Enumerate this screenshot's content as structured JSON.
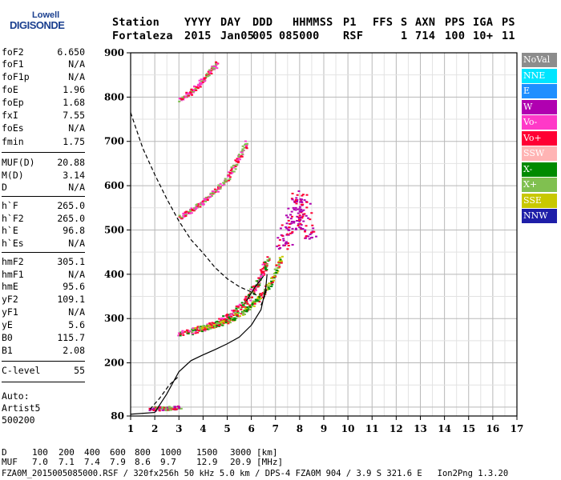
{
  "logo": {
    "line1": "Lowell",
    "line2": "DIGISONDE"
  },
  "header": {
    "row1": [
      "Station",
      "YYYY",
      "DAY",
      "DDD",
      "HHMMSS",
      "P1",
      "FFS",
      "S",
      "AXN",
      "PPS",
      "IGA",
      "PS"
    ],
    "row2": [
      "Fortaleza",
      "2015",
      "Jan05",
      "005",
      "085000",
      "RSF",
      "1",
      "714",
      "100",
      "10+",
      "11"
    ]
  },
  "params": [
    {
      "k": "foF2",
      "v": "6.650"
    },
    {
      "k": "foF1",
      "v": "N/A"
    },
    {
      "k": "foF1p",
      "v": "N/A"
    },
    {
      "k": "foE",
      "v": "1.96"
    },
    {
      "k": "foEp",
      "v": "1.68"
    },
    {
      "k": "fxI",
      "v": "7.55"
    },
    {
      "k": "foEs",
      "v": "N/A"
    },
    {
      "k": "fmin",
      "v": "1.75"
    },
    {
      "k": "MUF(D)",
      "v": "20.88"
    },
    {
      "k": "M(D)",
      "v": "3.14"
    },
    {
      "k": "D",
      "v": "N/A"
    },
    {
      "k": "h`F",
      "v": "265.0"
    },
    {
      "k": "h`F2",
      "v": "265.0"
    },
    {
      "k": "h`E",
      "v": "96.8"
    },
    {
      "k": "h`Es",
      "v": "N/A"
    },
    {
      "k": "hmF2",
      "v": "305.1"
    },
    {
      "k": "hmF1",
      "v": "N/A"
    },
    {
      "k": "hmE",
      "v": "95.6"
    },
    {
      "k": "yF2",
      "v": "109.1"
    },
    {
      "k": "yF1",
      "v": "N/A"
    },
    {
      "k": "yE",
      "v": "5.6"
    },
    {
      "k": "B0",
      "v": "115.7"
    },
    {
      "k": "B1",
      "v": "2.08"
    },
    {
      "k": "C-level",
      "v": "55"
    }
  ],
  "auto": {
    "line1": "Auto:",
    "line2": "Artist5",
    "line3": "500200"
  },
  "legend": [
    {
      "label": "NoVal",
      "color": "#8c8c8c"
    },
    {
      "label": "NNE",
      "color": "#00e5ff"
    },
    {
      "label": "E",
      "color": "#1f8fff"
    },
    {
      "label": "W",
      "color": "#b000b0"
    },
    {
      "label": "Vo-",
      "color": "#ff39c8"
    },
    {
      "label": "Vo+",
      "color": "#ff0033"
    },
    {
      "label": "SSW",
      "color": "#ffb4b4"
    },
    {
      "label": "X-",
      "color": "#008a00"
    },
    {
      "label": "X+",
      "color": "#80c050"
    },
    {
      "label": "SSE",
      "color": "#c8c800"
    },
    {
      "label": "NNW",
      "color": "#1e1ea8"
    }
  ],
  "footer": {
    "d_label": "D",
    "d_values": [
      "100",
      "200",
      "400",
      "600",
      "800",
      "1000",
      "1500",
      "3000",
      "[km]"
    ],
    "muf_label": "MUF",
    "muf_values": [
      "7.0",
      "7.1",
      "7.4",
      "7.9",
      "8.6",
      "9.7",
      "12.9",
      "20.9",
      "[MHz]"
    ],
    "info": "FZA0M_2015005085000.RSF / 320fx256h 50 kHz 5.0 km / DPS-4 FZA0M 904 / 3.9 S 321.6 E   Ion2Png 1.3.20"
  },
  "chart_data": {
    "type": "scatter",
    "xlim": [
      1,
      17
    ],
    "ylim": [
      80,
      900
    ],
    "x_ticks": [
      1,
      2,
      3,
      4,
      5,
      6,
      7,
      8,
      9,
      10,
      11,
      12,
      13,
      14,
      15,
      16,
      17
    ],
    "y_ticks": [
      80,
      200,
      300,
      400,
      500,
      600,
      700,
      800,
      900
    ],
    "grid": true,
    "traces": [
      {
        "name": "o_F2",
        "x": [
          3.0,
          3.5,
          4.0,
          4.5,
          5.0,
          5.4,
          5.8,
          6.1,
          6.4,
          6.65
        ],
        "y": [
          268,
          272,
          280,
          290,
          305,
          322,
          345,
          370,
          400,
          440
        ]
      },
      {
        "name": "x_F2",
        "x": [
          3.7,
          4.2,
          4.7,
          5.2,
          5.7,
          6.1,
          6.5,
          6.9,
          7.2
        ],
        "y": [
          278,
          282,
          290,
          300,
          318,
          338,
          360,
          395,
          440
        ]
      },
      {
        "name": "o_F2_2hop",
        "x": [
          3.0,
          3.5,
          4.0,
          4.5,
          5.0,
          5.4,
          5.8
        ],
        "y": [
          530,
          545,
          565,
          590,
          620,
          660,
          700
        ]
      },
      {
        "name": "o_F2_3hop",
        "x": [
          3.0,
          3.4,
          3.8,
          4.2,
          4.6
        ],
        "y": [
          795,
          810,
          830,
          855,
          880
        ]
      },
      {
        "name": "o_E",
        "x": [
          1.8,
          2.2,
          2.6,
          3.0
        ],
        "y": [
          98,
          98,
          99,
          100
        ]
      },
      {
        "name": "W_spread",
        "x": [
          7.2,
          7.5,
          7.8,
          8.0,
          8.2,
          8.4
        ],
        "y": [
          460,
          500,
          540,
          580,
          520,
          480
        ]
      }
    ],
    "profile_lines": [
      {
        "style": "solid",
        "x": [
          1.0,
          2.0,
          2.5,
          3.0,
          3.5,
          4.0,
          4.5,
          5.0,
          5.5,
          6.0,
          6.4,
          6.6,
          6.65
        ],
        "y": [
          84,
          88,
          130,
          180,
          205,
          218,
          230,
          243,
          258,
          285,
          320,
          370,
          400
        ]
      },
      {
        "style": "solid",
        "x": [
          5.8,
          6.0,
          6.2,
          6.4,
          6.5
        ],
        "y": [
          340,
          358,
          375,
          388,
          396
        ]
      },
      {
        "style": "dashed",
        "x": [
          1.0,
          1.5,
          2.0,
          2.5,
          3.0,
          3.5,
          4.0,
          4.5,
          5.0,
          5.5,
          6.0,
          6.3
        ],
        "y": [
          765,
          685,
          625,
          570,
          520,
          478,
          448,
          415,
          390,
          372,
          360,
          350
        ]
      },
      {
        "style": "dashed",
        "x": [
          1.8,
          2.2,
          2.6,
          3.0
        ],
        "y": [
          95,
          120,
          150,
          170
        ]
      },
      {
        "style": "dashed",
        "x": [
          6.4,
          6.55,
          6.65
        ],
        "y": [
          330,
          350,
          370
        ]
      }
    ]
  }
}
